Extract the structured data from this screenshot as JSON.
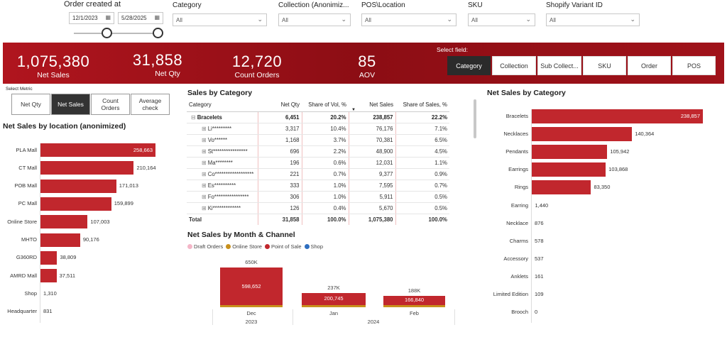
{
  "filters": {
    "date": {
      "label": "Order created at",
      "start": "12/1/2023",
      "end": "5/28/2025"
    },
    "category": {
      "label": "Category",
      "value": "All"
    },
    "collection": {
      "label": "Collection (Anonimiz...",
      "value": "All"
    },
    "pos": {
      "label": "POS\\Location",
      "value": "All"
    },
    "sku": {
      "label": "SKU",
      "value": "All"
    },
    "variant": {
      "label": "Shopify Variant ID",
      "value": "All"
    }
  },
  "kpis": [
    {
      "value": "1,075,380",
      "label": "Net Sales"
    },
    {
      "value": "31,858",
      "label": "Net Qty"
    },
    {
      "value": "12,720",
      "label": "Count Orders"
    },
    {
      "value": "85",
      "label": "AOV"
    }
  ],
  "field_select": {
    "label": "Select field:",
    "buttons": [
      "Category",
      "Collection",
      "Sub Collect...",
      "SKU",
      "Order",
      "POS"
    ],
    "selected": "Category"
  },
  "metric_select": {
    "label": "Select Metric",
    "buttons": [
      "Net Qty",
      "Net Sales",
      "Count Orders",
      "Average check"
    ],
    "selected": "Net Sales"
  },
  "location_chart": {
    "title": "Net Sales by location (anonimized)",
    "chart_data": {
      "type": "bar",
      "orientation": "horizontal",
      "categories": [
        "PLA Mall",
        "CT Mall",
        "POB Mall",
        "PC Mall",
        "Online Store",
        "MHTO",
        "G360RD",
        "AMRD Mall",
        "Shop",
        "Headquarter"
      ],
      "values": [
        258663,
        210164,
        171013,
        159899,
        107003,
        90176,
        38809,
        37511,
        1310,
        831
      ],
      "labels": [
        "258,663",
        "210,164",
        "171,013",
        "159,899",
        "107,003",
        "90,176",
        "38,809",
        "37,511",
        "1,310",
        "831"
      ]
    }
  },
  "category_table": {
    "title": "Sales by Category",
    "headers": [
      "Category",
      "Net Qty",
      "Share of Vol, %",
      "Net Sales",
      "Share of Sales, %"
    ],
    "rows": [
      {
        "name": "Bracelets",
        "qty": "6,451",
        "vol": "20.2%",
        "sales": "238,857",
        "share": "22.2%",
        "bold": true,
        "toggle": "⊟"
      },
      {
        "name": "Li*********",
        "qty": "3,317",
        "vol": "10.4%",
        "sales": "76,176",
        "share": "7.1%",
        "toggle": "⊞"
      },
      {
        "name": "Vo******",
        "qty": "1,168",
        "vol": "3.7%",
        "sales": "70,381",
        "share": "6.5%",
        "toggle": "⊞"
      },
      {
        "name": "St****************",
        "qty": "696",
        "vol": "2.2%",
        "sales": "48,900",
        "share": "4.5%",
        "toggle": "⊞"
      },
      {
        "name": "Ma********",
        "qty": "196",
        "vol": "0.6%",
        "sales": "12,031",
        "share": "1.1%",
        "toggle": "⊞"
      },
      {
        "name": "Co******************",
        "qty": "221",
        "vol": "0.7%",
        "sales": "9,377",
        "share": "0.9%",
        "toggle": "⊞"
      },
      {
        "name": "Es**********",
        "qty": "333",
        "vol": "1.0%",
        "sales": "7,595",
        "share": "0.7%",
        "toggle": "⊞"
      },
      {
        "name": "Fo****************",
        "qty": "306",
        "vol": "1.0%",
        "sales": "5,911",
        "share": "0.5%",
        "toggle": "⊞"
      },
      {
        "name": "Ki*************",
        "qty": "126",
        "vol": "0.4%",
        "sales": "5,670",
        "share": "0.5%",
        "toggle": "⊞"
      }
    ],
    "total": {
      "name": "Total",
      "qty": "31,858",
      "vol": "100.0%",
      "sales": "1,075,380",
      "share": "100.0%"
    }
  },
  "month_chart": {
    "title": "Net Sales by Month & Channel",
    "legend": [
      {
        "name": "Draft Orders",
        "color": "#f4b6c8"
      },
      {
        "name": "Online Store",
        "color": "#c8901c"
      },
      {
        "name": "Point of Sale",
        "color": "#c1272d"
      },
      {
        "name": "Shop",
        "color": "#2e6fc0"
      }
    ],
    "chart_data": {
      "type": "bar",
      "stacked": true,
      "categories": [
        "Dec",
        "Jan",
        "Feb"
      ],
      "years": [
        "2023",
        "2024"
      ],
      "totals": [
        650,
        237,
        188
      ],
      "total_labels": [
        "650K",
        "237K",
        "188K"
      ],
      "series": [
        {
          "name": "Point of Sale",
          "values": [
            598652,
            200745,
            166840
          ],
          "labels": [
            "598,652",
            "200,745",
            "166,840"
          ]
        }
      ]
    }
  },
  "category_chart": {
    "title": "Net Sales by Category",
    "chart_data": {
      "type": "bar",
      "orientation": "horizontal",
      "categories": [
        "Bracelets",
        "Necklaces",
        "Pendants",
        "Earrings",
        "Rings",
        "Earring",
        "Necklace",
        "Charms",
        "Accessory",
        "Anklets",
        "Limited Edition",
        "Brooch"
      ],
      "values": [
        238857,
        140364,
        105942,
        103868,
        83350,
        1440,
        876,
        578,
        537,
        161,
        109,
        0
      ],
      "labels": [
        "238,857",
        "140,364",
        "105,942",
        "103,868",
        "83,350",
        "1,440",
        "876",
        "578",
        "537",
        "161",
        "109",
        "0"
      ]
    }
  }
}
